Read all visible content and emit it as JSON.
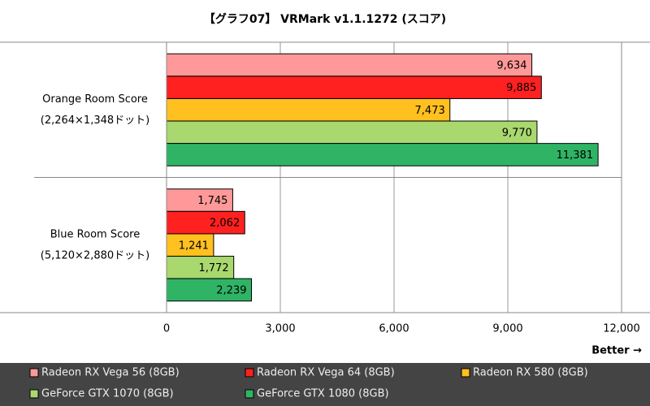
{
  "chart_data": {
    "type": "hbar",
    "title": "【グラフ07】 VRMark v1.1.1272 (スコア)",
    "categories": [
      "Orange Room Score",
      "Blue Room Score"
    ],
    "category_notes": [
      "(2,264×1,348ドット)",
      "(5,120×2,880ドット)"
    ],
    "series": [
      {
        "name": "Radeon RX Vega 56 (8GB)",
        "color": "#ff9999",
        "values": [
          9634,
          1745
        ],
        "value_labels": [
          "9,634",
          "1,745"
        ]
      },
      {
        "name": "Radeon RX Vega 64 (8GB)",
        "color": "#ff2020",
        "values": [
          9885,
          2062
        ],
        "value_labels": [
          "9,885",
          "2,062"
        ]
      },
      {
        "name": "Radeon RX 580 (8GB)",
        "color": "#ffc020",
        "values": [
          7473,
          1241
        ],
        "value_labels": [
          "7,473",
          "1,241"
        ]
      },
      {
        "name": "GeForce GTX 1070 (8GB)",
        "color": "#a9d86e",
        "values": [
          9770,
          1772
        ],
        "value_labels": [
          "9,770",
          "1,772"
        ]
      },
      {
        "name": "GeForce GTX 1080 (8GB)",
        "color": "#2fb466",
        "values": [
          11381,
          2239
        ],
        "value_labels": [
          "11,381",
          "2,239"
        ]
      }
    ],
    "xlim": [
      0,
      12000
    ],
    "xticks": [
      0,
      {
        "value": 3000,
        "label": "3,000"
      },
      {
        "value": 6000,
        "label": "6,000"
      },
      {
        "value": 9000,
        "label": "9,000"
      },
      {
        "value": 12000,
        "label": "12,000"
      }
    ],
    "grid": true,
    "annotation": "Better →"
  }
}
